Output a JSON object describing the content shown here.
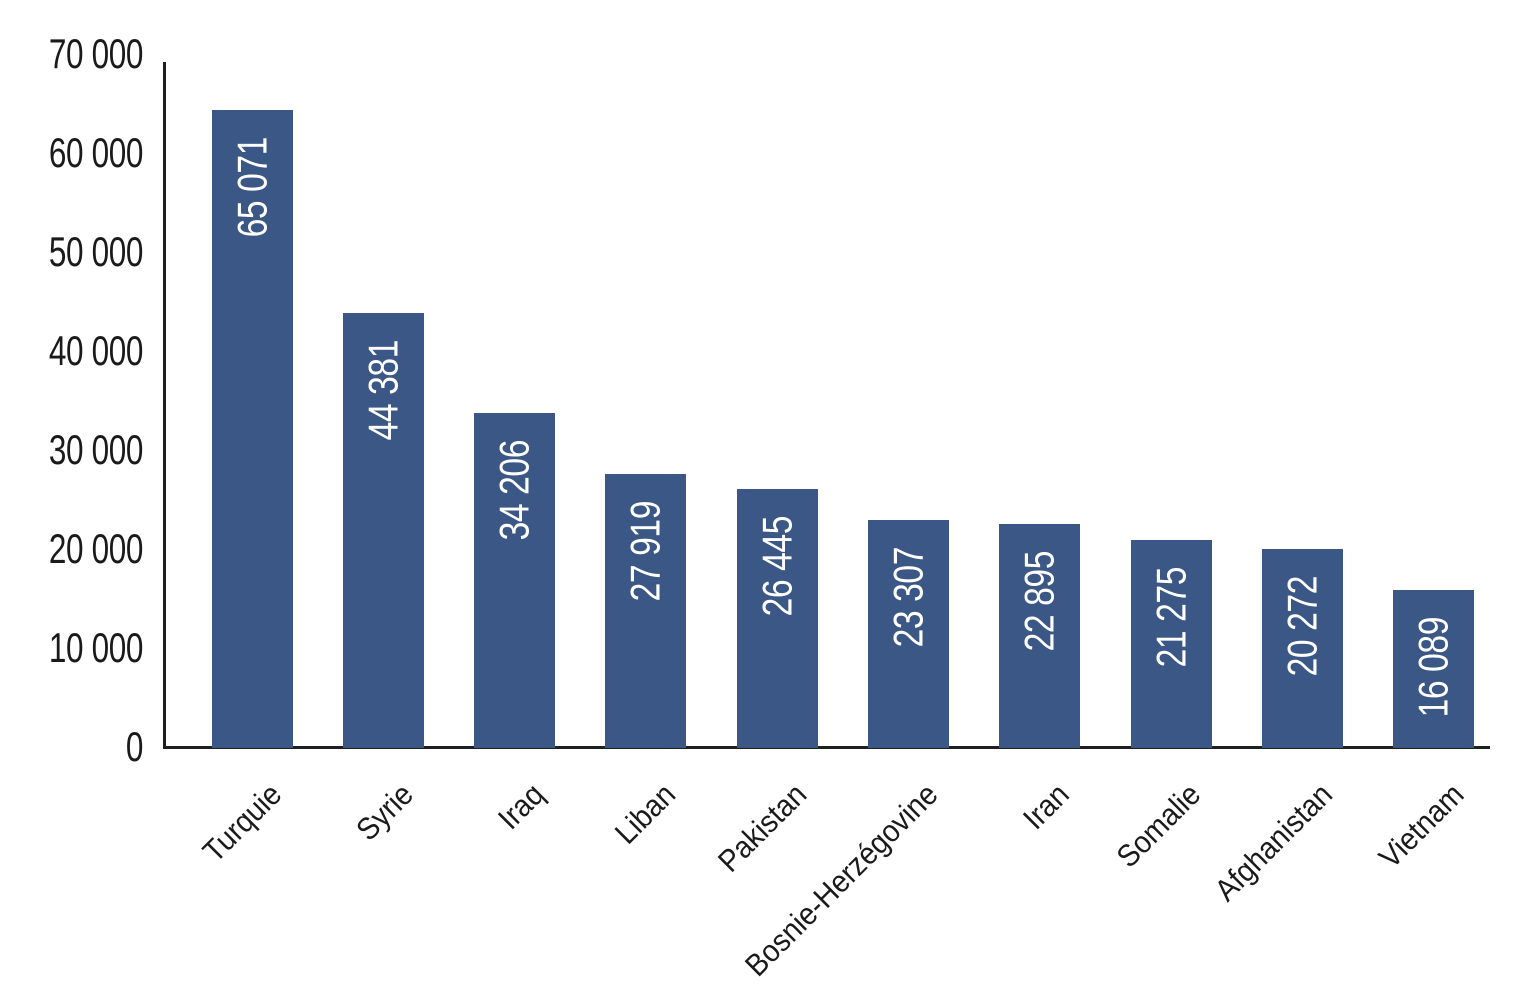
{
  "chart_data": {
    "type": "bar",
    "title": "",
    "xlabel": "",
    "ylabel": "",
    "legend": "none",
    "grid": "off",
    "categories": [
      "Turquie",
      "Syrie",
      "Iraq",
      "Liban",
      "Pakistan",
      "Bosnie-Herzégovine",
      "Iran",
      "Somalie",
      "Afghanistan",
      "Vietnam"
    ],
    "values": [
      65071,
      44381,
      34206,
      27919,
      26445,
      23307,
      22895,
      21275,
      20272,
      16089
    ],
    "value_labels": [
      "65 071",
      "44 381",
      "34 206",
      "27 919",
      "26 445",
      "23 307",
      "22 895",
      "21 275",
      "20 272",
      "16 089"
    ],
    "y_ticks": [
      "0",
      "10 000",
      "20 000",
      "30 000",
      "40 000",
      "50 000",
      "60 000",
      "70 000"
    ],
    "ylim": [
      0,
      70000
    ],
    "x_tick_rotation_deg": -45,
    "value_label_rotation_deg": -90,
    "bar_color": "#3B5786",
    "value_label_color": "#FFFFFF",
    "axis_line_color": "#1F1F1F",
    "tick_label_color": "#1A1A1A"
  }
}
